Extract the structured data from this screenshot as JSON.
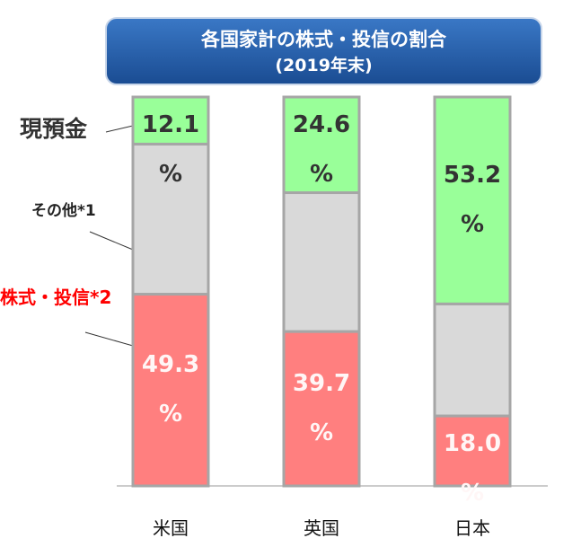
{
  "chart_data": {
    "type": "stacked-bar",
    "title": "各国家計の株式・投信の割合",
    "subtitle": "(2019年末)",
    "categories": [
      "米国",
      "英国",
      "日本"
    ],
    "series": [
      {
        "name": "株式・投信*2",
        "color": "#ff7f7f",
        "label_color": "#ff0000",
        "values": [
          49.3,
          39.7,
          18.0
        ],
        "value_labels": [
          "49.3\n%",
          "39.7\n%",
          "18.0\n%"
        ]
      },
      {
        "name": "その他*1",
        "color": "#d9d9d9",
        "label_color": "#222222",
        "values": [
          38.6,
          35.7,
          28.8
        ]
      },
      {
        "name": "現預金",
        "color": "#99ff99",
        "label_color": "#333333",
        "values": [
          12.1,
          24.6,
          53.2
        ],
        "value_labels": [
          "12.1\n%",
          "24.6\n%",
          "53.2\n%"
        ]
      }
    ]
  }
}
